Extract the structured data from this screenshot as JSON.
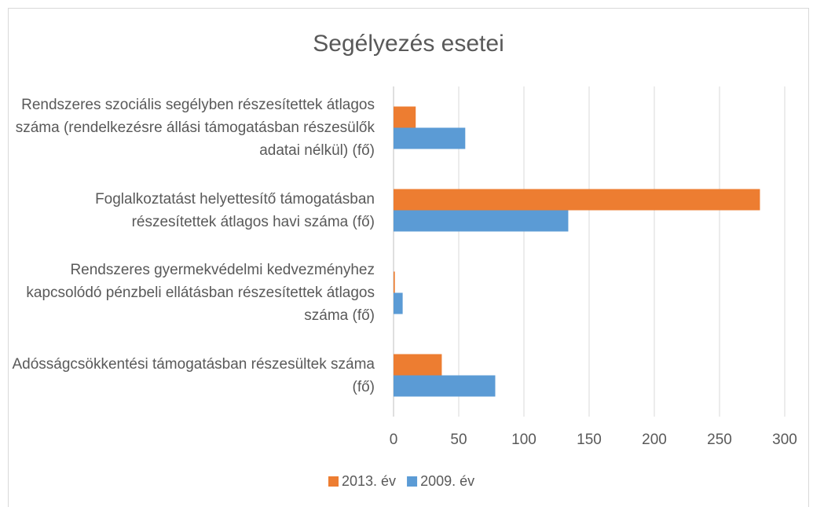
{
  "chart_data": {
    "type": "bar",
    "orientation": "horizontal",
    "title": "Segélyezés esetei",
    "categories": [
      "Rendszeres szociális segélyben részesítettek átlagos száma (rendelkezésre állási támogatásban részesülők adatai nélkül)  (fő)",
      "Foglalkoztatást helyettesítő támogatásban részesítettek átlagos havi száma (fő)",
      "Rendszeres gyermekvédelmi kedvezményhez kapcsolódó pénzbeli ellátásban részesítettek átlagos száma (fő)",
      "Adósságcsökkentési támogatásban részesültek száma (fő)"
    ],
    "series": [
      {
        "name": "2013. év",
        "color": "#ed7d31",
        "values": [
          17,
          281,
          1,
          37
        ]
      },
      {
        "name": "2009. év",
        "color": "#5b9bd5",
        "values": [
          55,
          134,
          7,
          78
        ]
      }
    ],
    "xlim": [
      0,
      300
    ],
    "xticks": [
      0,
      50,
      100,
      150,
      200,
      250,
      300
    ],
    "grid": true,
    "legend": "bottom"
  }
}
